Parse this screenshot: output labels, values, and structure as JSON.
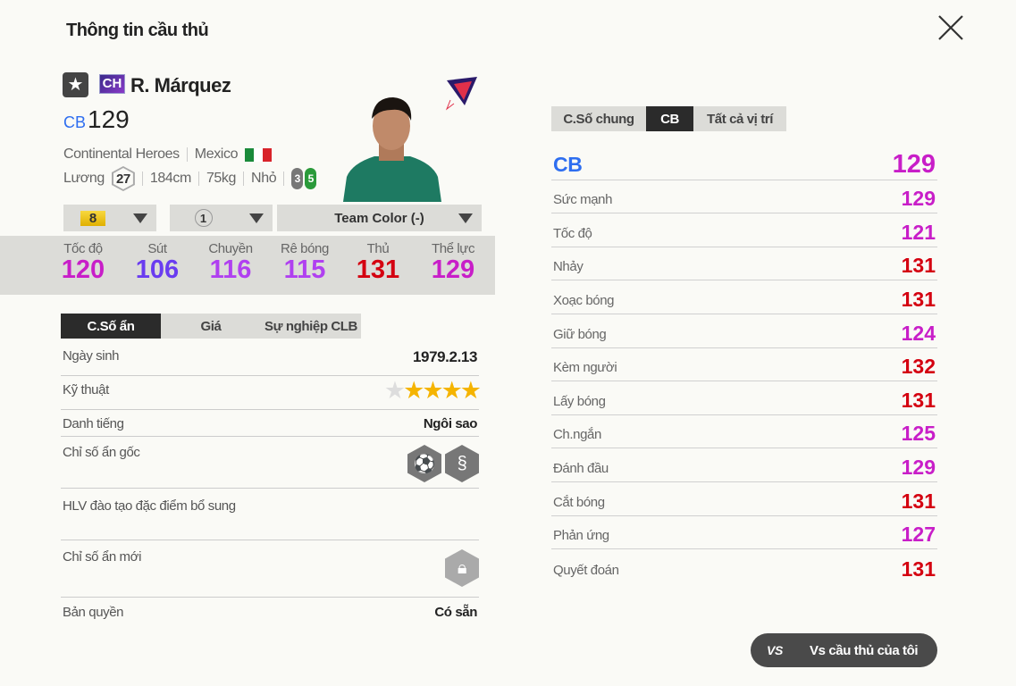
{
  "header": {
    "title": "Thông tin cầu thủ",
    "close_icon": "close-icon"
  },
  "player": {
    "card_type": "CH",
    "name": "R. Márquez",
    "position": "CB",
    "overall": "129",
    "season": "Continental Heroes",
    "nation": "Mexico",
    "salary_label": "Lương",
    "salary": "27",
    "height": "184cm",
    "weight": "75kg",
    "body_type": "Nhỏ",
    "weak_foot": "3",
    "strong_foot": "5"
  },
  "selectors": {
    "upgrade_level": "8",
    "rank": "1",
    "team_color": "Team Color (-)"
  },
  "summary_stats": [
    {
      "label": "Tốc độ",
      "value": "120",
      "color": "#c81ec8"
    },
    {
      "label": "Sút",
      "value": "106",
      "color": "#6a3cf0"
    },
    {
      "label": "Chuyền",
      "value": "116",
      "color": "#b040f0"
    },
    {
      "label": "Rê bóng",
      "value": "115",
      "color": "#b040f0"
    },
    {
      "label": "Thủ",
      "value": "131",
      "color": "#d40010"
    },
    {
      "label": "Thể lực",
      "value": "129",
      "color": "#c81ec8"
    }
  ],
  "left_tabs": [
    "C.Số ẩn",
    "Giá",
    "Sự nghiệp CLB"
  ],
  "details": {
    "birth_label": "Ngày sinh",
    "birth": "1979.2.13",
    "skill_label": "Kỹ thuật",
    "skill_stars": 4,
    "fame_label": "Danh tiếng",
    "fame": "Ngôi sao",
    "traits_label": "Chỉ số ẩn gốc",
    "coach_label": "HLV đào tạo đặc điểm bổ sung",
    "new_traits_label": "Chỉ số ẩn mới",
    "license_label": "Bản quyền",
    "license": "Có sẵn"
  },
  "right_tabs": [
    "C.Số chung",
    "CB",
    "Tất cả vị trí"
  ],
  "position_rating": {
    "label": "CB",
    "value": "129"
  },
  "attributes": [
    {
      "label": "Sức mạnh",
      "value": "129",
      "color": "#c81ec8"
    },
    {
      "label": "Tốc độ",
      "value": "121",
      "color": "#c81ec8"
    },
    {
      "label": "Nhảy",
      "value": "131",
      "color": "#d40010"
    },
    {
      "label": "Xoạc bóng",
      "value": "131",
      "color": "#d40010"
    },
    {
      "label": "Giữ bóng",
      "value": "124",
      "color": "#c81ec8"
    },
    {
      "label": "Kèm người",
      "value": "132",
      "color": "#d40010"
    },
    {
      "label": "Lấy bóng",
      "value": "131",
      "color": "#d40010"
    },
    {
      "label": "Ch.ngắn",
      "value": "125",
      "color": "#c81ec8"
    },
    {
      "label": "Đánh đầu",
      "value": "129",
      "color": "#c81ec8"
    },
    {
      "label": "Cắt bóng",
      "value": "131",
      "color": "#d40010"
    },
    {
      "label": "Phản ứng",
      "value": "127",
      "color": "#c81ec8"
    },
    {
      "label": "Quyết đoán",
      "value": "131",
      "color": "#d40010"
    }
  ],
  "compare_button": {
    "icon": "VS",
    "label": "Vs cầu thủ của tôi"
  }
}
